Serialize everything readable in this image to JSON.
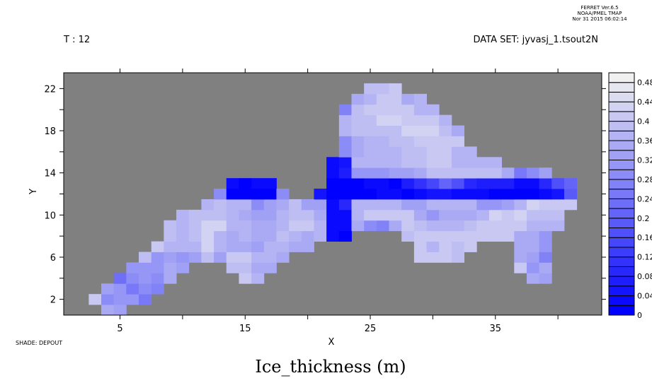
{
  "header": {
    "ferret_line1": "FERRET  Ver.6.5",
    "ferret_line2": "NOAA/PMEL TMAP",
    "ferret_line3": "Nor 31 2015 06:02:14",
    "time_label": "T : 12",
    "dataset_label": "DATA SET: jyvasj_1.tsout2N"
  },
  "footer": {
    "shade_label": "SHADE: DEPOUT"
  },
  "chart_data": {
    "type": "heatmap",
    "title": "Ice_thickness (m)",
    "xlabel": "X",
    "ylabel": "Y",
    "xlim": [
      0.5,
      43.5
    ],
    "ylim": [
      0.5,
      23.5
    ],
    "x_ticks": [
      5,
      10,
      15,
      20,
      25,
      30,
      35,
      40
    ],
    "x_tick_labels": [
      "5",
      "15",
      "25",
      "35"
    ],
    "y_ticks": [
      2,
      4,
      6,
      8,
      10,
      12,
      14,
      16,
      18,
      20,
      22
    ],
    "y_tick_labels": [
      "2",
      "6",
      "10",
      "14",
      "18",
      "22"
    ],
    "missing_color": "#808080",
    "colormap": {
      "low": "#0000ff",
      "high": "#f0f0f0"
    },
    "colorbar": {
      "levels_min": 0,
      "levels_max": 0.5,
      "level_step": 0.02,
      "labels": [
        "0",
        "0.04",
        "0.08",
        "0.12",
        "0.16",
        "0.2",
        "0.24",
        "0.28",
        "0.32",
        "0.36",
        "0.4",
        "0.44",
        "0.48"
      ],
      "placement": "right"
    },
    "rows": [
      {
        "y": 1,
        "segments": [
          {
            "x0": 4,
            "v": [
              0.34,
              0.32
            ]
          }
        ]
      },
      {
        "y": 2,
        "segments": [
          {
            "x0": 3,
            "v": [
              0.4,
              0.28,
              0.3,
              0.3,
              0.24
            ]
          }
        ]
      },
      {
        "y": 3,
        "segments": [
          {
            "x0": 4,
            "v": [
              0.32,
              0.3,
              0.24,
              0.28,
              0.26
            ]
          }
        ]
      },
      {
        "y": 4,
        "segments": [
          {
            "x0": 5,
            "v": [
              0.22,
              0.28,
              0.3,
              0.28,
              0.34
            ]
          },
          {
            "x0": 15,
            "v": [
              0.4,
              0.36
            ]
          },
          {
            "x0": 38,
            "v": [
              0.34,
              0.32
            ]
          }
        ]
      },
      {
        "y": 5,
        "segments": [
          {
            "x0": 6,
            "v": [
              0.3,
              0.3,
              0.3,
              0.34,
              0.32
            ]
          },
          {
            "x0": 14,
            "v": [
              0.38,
              0.38,
              0.34,
              0.34
            ]
          },
          {
            "x0": 37,
            "v": [
              0.4,
              0.3,
              0.34
            ]
          }
        ]
      },
      {
        "y": 6,
        "segments": [
          {
            "x0": 7,
            "v": [
              0.38,
              0.3,
              0.32,
              0.3,
              0.32,
              0.38,
              0.32,
              0.4,
              0.4,
              0.36,
              0.36,
              0.34
            ]
          },
          {
            "x0": 29,
            "v": [
              0.4,
              0.4,
              0.4,
              0.38
            ]
          },
          {
            "x0": 37,
            "v": [
              0.34,
              0.32,
              0.26
            ]
          }
        ]
      },
      {
        "y": 7,
        "segments": [
          {
            "x0": 8,
            "v": [
              0.4,
              0.36,
              0.36,
              0.36,
              0.42,
              0.36,
              0.34,
              0.34,
              0.32,
              0.36,
              0.36,
              0.34,
              0.34
            ]
          },
          {
            "x0": 29,
            "v": [
              0.4,
              0.36,
              0.4,
              0.38,
              0.4
            ]
          },
          {
            "x0": 37,
            "v": [
              0.34,
              0.34,
              0.3
            ]
          }
        ]
      },
      {
        "y": 8,
        "segments": [
          {
            "x0": 9,
            "v": [
              0.38,
              0.36,
              0.38,
              0.42,
              0.36,
              0.34,
              0.36,
              0.34,
              0.34,
              0.38,
              0.36,
              0.34,
              0.36,
              0.02,
              0.0
            ]
          },
          {
            "x0": 28,
            "v": [
              0.38,
              0.4,
              0.4,
              0.4,
              0.4,
              0.4,
              0.4,
              0.4,
              0.4,
              0.34,
              0.34,
              0.3
            ]
          }
        ]
      },
      {
        "y": 9,
        "segments": [
          {
            "x0": 9,
            "v": [
              0.38,
              0.36,
              0.38,
              0.42,
              0.42,
              0.36,
              0.36,
              0.34,
              0.34,
              0.36,
              0.4,
              0.4,
              0.36,
              0.02,
              0.02,
              0.34,
              0.28,
              0.26,
              0.34,
              0.4,
              0.38,
              0.36,
              0.36,
              0.36,
              0.38,
              0.4,
              0.4,
              0.4,
              0.4,
              0.36,
              0.36,
              0.36
            ]
          }
        ]
      },
      {
        "y": 10,
        "segments": [
          {
            "x0": 10,
            "v": [
              0.36,
              0.38,
              0.38,
              0.38,
              0.36,
              0.34,
              0.32,
              0.32,
              0.36,
              0.38,
              0.38,
              0.34,
              0.02,
              0.02,
              0.36,
              0.4,
              0.4,
              0.4,
              0.4,
              0.34,
              0.3,
              0.34,
              0.34,
              0.34,
              0.36,
              0.42,
              0.4,
              0.42,
              0.38,
              0.38,
              0.38
            ]
          }
        ]
      },
      {
        "y": 11,
        "segments": [
          {
            "x0": 12,
            "v": [
              0.36,
              0.38,
              0.36,
              0.36,
              0.28,
              0.32,
              0.34,
              0.38,
              0.32,
              0.32,
              0.02,
              0.08,
              0.36,
              0.36,
              0.36,
              0.36,
              0.32,
              0.32,
              0.36,
              0.36,
              0.36,
              0.36,
              0.3,
              0.3,
              0.32,
              0.36,
              0.42,
              0.4,
              0.4,
              0.4
            ]
          }
        ]
      },
      {
        "y": 12,
        "segments": [
          {
            "x0": 13,
            "v": [
              0.28,
              0.0,
              0.0,
              0.0,
              0.0,
              0.28
            ]
          },
          {
            "x0": 21,
            "v": [
              0.04,
              0.0,
              0.0,
              0.0,
              0.0,
              0.02,
              0.02,
              0.0,
              0.02,
              0.04,
              0.04,
              0.02,
              0.02,
              0.02,
              0.0,
              0.0,
              0.0,
              0.0,
              0.02,
              0.04,
              0.18
            ]
          }
        ]
      },
      {
        "y": 13,
        "segments": [
          {
            "x0": 14,
            "v": [
              0.02,
              0.0,
              0.02,
              0.02
            ]
          },
          {
            "x0": 22,
            "v": [
              0.0,
              0.0,
              0.0,
              0.02,
              0.02,
              0.0,
              0.06,
              0.1,
              0.14,
              0.2,
              0.16,
              0.08,
              0.06,
              0.06,
              0.06,
              0.02,
              0.02,
              0.08,
              0.16,
              0.2
            ]
          }
        ]
      },
      {
        "y": 14,
        "segments": [
          {
            "x0": 22,
            "v": [
              0.02,
              0.06,
              0.3,
              0.3,
              0.3,
              0.32,
              0.32,
              0.34,
              0.38,
              0.38,
              0.38,
              0.38,
              0.38,
              0.38,
              0.34,
              0.24,
              0.28,
              0.32
            ]
          }
        ]
      },
      {
        "y": 15,
        "segments": [
          {
            "x0": 22,
            "v": [
              0.02,
              0.04,
              0.36,
              0.36,
              0.36,
              0.36,
              0.38,
              0.38,
              0.4,
              0.4,
              0.36,
              0.36,
              0.36,
              0.36
            ]
          }
        ]
      },
      {
        "y": 16,
        "segments": [
          {
            "x0": 23,
            "v": [
              0.28,
              0.34,
              0.36,
              0.36,
              0.36,
              0.38,
              0.38,
              0.4,
              0.4,
              0.36,
              0.36
            ]
          }
        ]
      },
      {
        "y": 17,
        "segments": [
          {
            "x0": 23,
            "v": [
              0.28,
              0.34,
              0.36,
              0.36,
              0.38,
              0.38,
              0.4,
              0.4,
              0.4,
              0.4
            ]
          }
        ]
      },
      {
        "y": 18,
        "segments": [
          {
            "x0": 23,
            "v": [
              0.36,
              0.38,
              0.38,
              0.38,
              0.38,
              0.42,
              0.42,
              0.42,
              0.38,
              0.34
            ]
          }
        ]
      },
      {
        "y": 19,
        "segments": [
          {
            "x0": 23,
            "v": [
              0.36,
              0.38,
              0.38,
              0.42,
              0.42,
              0.4,
              0.4,
              0.4,
              0.36
            ]
          }
        ]
      },
      {
        "y": 20,
        "segments": [
          {
            "x0": 23,
            "v": [
              0.26,
              0.38,
              0.4,
              0.4,
              0.4,
              0.4,
              0.36,
              0.36
            ]
          }
        ]
      },
      {
        "y": 21,
        "segments": [
          {
            "x0": 24,
            "v": [
              0.34,
              0.36,
              0.4,
              0.4,
              0.34,
              0.36
            ]
          }
        ]
      },
      {
        "y": 22,
        "segments": [
          {
            "x0": 25,
            "v": [
              0.38,
              0.38,
              0.4
            ]
          }
        ]
      }
    ]
  }
}
